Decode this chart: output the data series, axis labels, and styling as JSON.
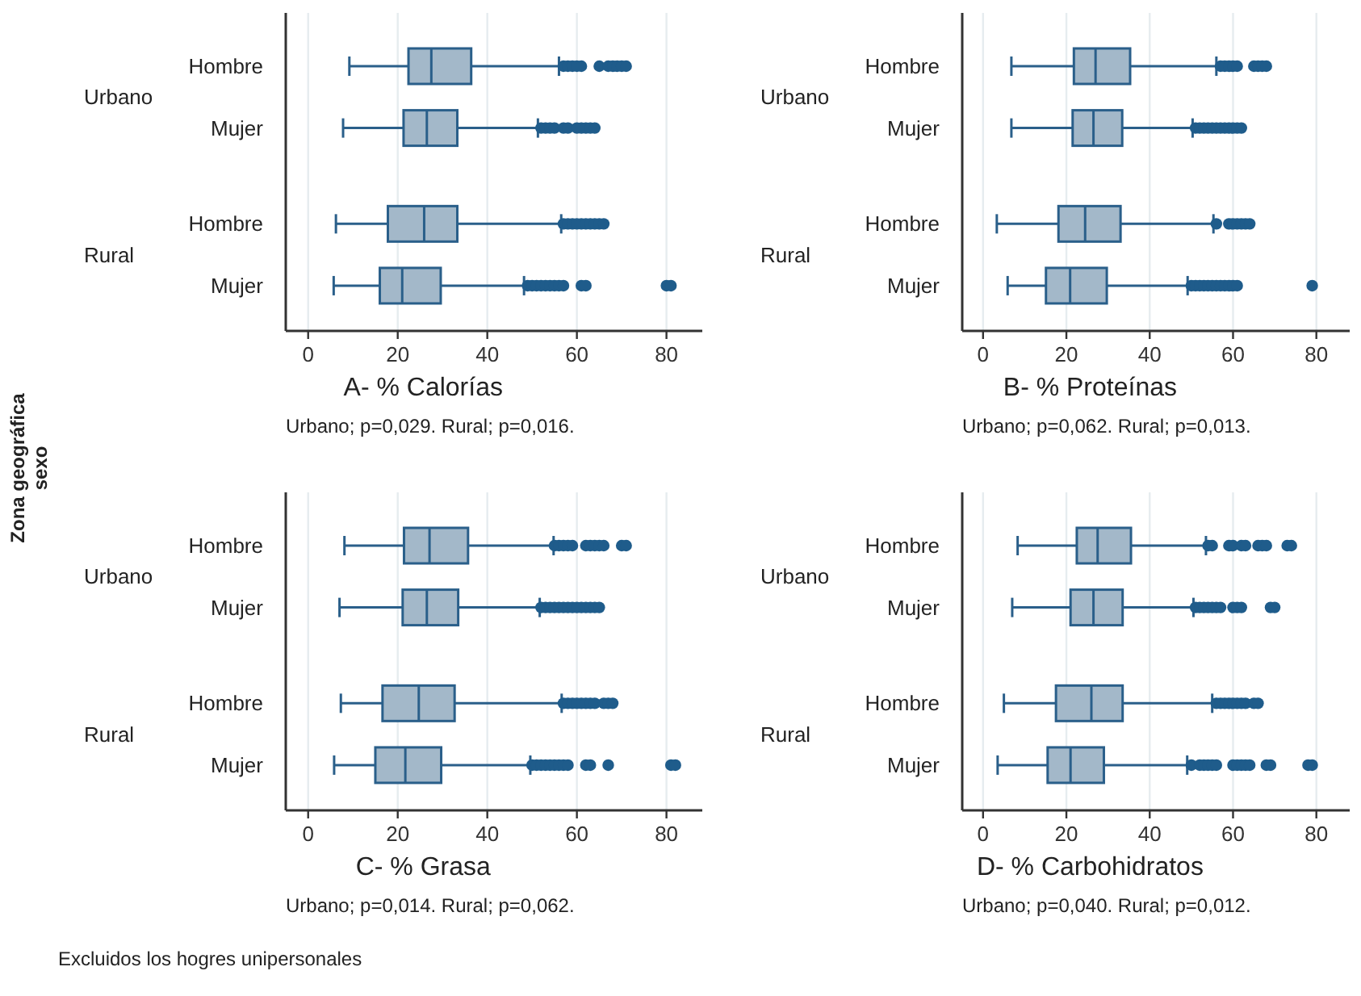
{
  "chart_data": [
    {
      "type": "box",
      "orientation": "horizontal",
      "xlabel": "A- % Calorías",
      "ylabel": "Zona geográfica\nsexo",
      "categories": [
        "Hombre",
        "Mujer",
        "Hombre",
        "Mujer"
      ],
      "xlim": [
        -5,
        88
      ],
      "xticks": [
        0,
        20,
        40,
        60,
        80
      ],
      "grid": "x",
      "annotations": [
        "Urbano",
        "Rural",
        "Urbano; p=0,029. Rural; p=0,016."
      ],
      "series": [
        {
          "color": "#a3b8c9",
          "boxes": [
            {
              "low": 9.2,
              "q1": 22.4,
              "median": 27.5,
              "q3": 36.4,
              "high": 56,
              "outliers": [
                57,
                58,
                59,
                60,
                61,
                65,
                67,
                68,
                69,
                70,
                71
              ]
            },
            {
              "low": 7.8,
              "q1": 21.3,
              "median": 26.5,
              "q3": 33.3,
              "high": 51.3,
              "outliers": [
                52,
                53,
                54,
                55,
                57,
                58,
                60,
                61,
                62,
                63,
                64
              ]
            },
            {
              "low": 6.2,
              "q1": 17.8,
              "median": 25.9,
              "q3": 33.3,
              "high": 56.5,
              "outliers": [
                57,
                58,
                59,
                60,
                61,
                62,
                63,
                64,
                65,
                66
              ]
            },
            {
              "low": 5.7,
              "q1": 16,
              "median": 21,
              "q3": 29.6,
              "high": 48.2,
              "outliers": [
                49,
                50,
                51,
                52,
                53,
                54,
                55,
                56,
                57,
                61,
                62,
                80,
                81
              ]
            }
          ]
        }
      ]
    },
    {
      "type": "box",
      "orientation": "horizontal",
      "xlabel": "B- % Proteínas",
      "categories": [
        "Hombre",
        "Mujer",
        "Hombre",
        "Mujer"
      ],
      "xlim": [
        -5,
        88
      ],
      "xticks": [
        0,
        20,
        40,
        60,
        80
      ],
      "grid": "x",
      "annotations": [
        "Urbano",
        "Rural",
        "Urbano; p=0,062. Rural; p=0,013."
      ],
      "series": [
        {
          "color": "#a3b8c9",
          "boxes": [
            {
              "low": 6.8,
              "q1": 21.8,
              "median": 27,
              "q3": 35.3,
              "high": 56,
              "outliers": [
                57,
                58,
                59,
                60,
                61,
                65,
                66,
                67,
                68
              ]
            },
            {
              "low": 6.8,
              "q1": 21.5,
              "median": 26.5,
              "q3": 33.4,
              "high": 50.3,
              "outliers": [
                51,
                52,
                53,
                54,
                55,
                56,
                57,
                58,
                59,
                60,
                61,
                62
              ]
            },
            {
              "low": 3.3,
              "q1": 18.1,
              "median": 24.5,
              "q3": 33,
              "high": 55.3,
              "outliers": [
                56,
                59,
                60,
                61,
                62,
                63,
                64
              ]
            },
            {
              "low": 5.9,
              "q1": 15.1,
              "median": 20.9,
              "q3": 29.7,
              "high": 49.1,
              "outliers": [
                50,
                51,
                52,
                53,
                54,
                55,
                56,
                57,
                58,
                59,
                60,
                61,
                79
              ]
            }
          ]
        }
      ]
    },
    {
      "type": "box",
      "orientation": "horizontal",
      "xlabel": "C- % Grasa",
      "categories": [
        "Hombre",
        "Mujer",
        "Hombre",
        "Mujer"
      ],
      "xlim": [
        -5,
        88
      ],
      "xticks": [
        0,
        20,
        40,
        60,
        80
      ],
      "grid": "x",
      "annotations": [
        "Urbano",
        "Rural",
        "Urbano; p=0,014. Rural; p=0,062.",
        "Excluidos los hogres unipersonales"
      ],
      "series": [
        {
          "color": "#a3b8c9",
          "boxes": [
            {
              "low": 8.1,
              "q1": 21.4,
              "median": 27.1,
              "q3": 35.7,
              "high": 54.8,
              "outliers": [
                55,
                56,
                57,
                58,
                59,
                62,
                63,
                64,
                65,
                66,
                70,
                71
              ]
            },
            {
              "low": 7,
              "q1": 21.1,
              "median": 26.5,
              "q3": 33.5,
              "high": 51.7,
              "outliers": [
                52,
                53,
                54,
                55,
                56,
                57,
                58,
                59,
                60,
                61,
                62,
                63,
                64,
                65
              ]
            },
            {
              "low": 7.3,
              "q1": 16.6,
              "median": 24.7,
              "q3": 32.7,
              "high": 56.6,
              "outliers": [
                57,
                58,
                59,
                60,
                61,
                62,
                63,
                64,
                66,
                67,
                68
              ]
            },
            {
              "low": 5.8,
              "q1": 15,
              "median": 21.7,
              "q3": 29.7,
              "high": 49.6,
              "outliers": [
                50,
                51,
                52,
                53,
                54,
                55,
                56,
                57,
                58,
                62,
                63,
                67,
                81,
                82
              ]
            }
          ]
        }
      ]
    },
    {
      "type": "box",
      "orientation": "horizontal",
      "xlabel": "D- % Carbohidratos",
      "categories": [
        "Hombre",
        "Mujer",
        "Hombre",
        "Mujer"
      ],
      "xlim": [
        -5,
        88
      ],
      "xticks": [
        0,
        20,
        40,
        60,
        80
      ],
      "grid": "x",
      "annotations": [
        "Urbano",
        "Rural",
        "Urbano; p=0,040. Rural; p=0,012."
      ],
      "series": [
        {
          "color": "#a3b8c9",
          "boxes": [
            {
              "low": 8.3,
              "q1": 22.5,
              "median": 27.5,
              "q3": 35.5,
              "high": 53.5,
              "outliers": [
                54,
                55,
                59,
                60,
                62,
                63,
                66,
                67,
                68,
                73,
                74
              ]
            },
            {
              "low": 7,
              "q1": 21,
              "median": 26.5,
              "q3": 33.5,
              "high": 50.5,
              "outliers": [
                51,
                52,
                53,
                54,
                55,
                56,
                57,
                60,
                61,
                62,
                69,
                70
              ]
            },
            {
              "low": 5,
              "q1": 17.5,
              "median": 26,
              "q3": 33.5,
              "high": 55,
              "outliers": [
                56,
                57,
                58,
                59,
                60,
                61,
                62,
                63,
                65,
                66
              ]
            },
            {
              "low": 3.5,
              "q1": 15.5,
              "median": 21,
              "q3": 29,
              "high": 49,
              "outliers": [
                50,
                52,
                53,
                54,
                55,
                56,
                60,
                61,
                62,
                63,
                64,
                68,
                69,
                78,
                79
              ]
            }
          ]
        }
      ]
    }
  ]
}
